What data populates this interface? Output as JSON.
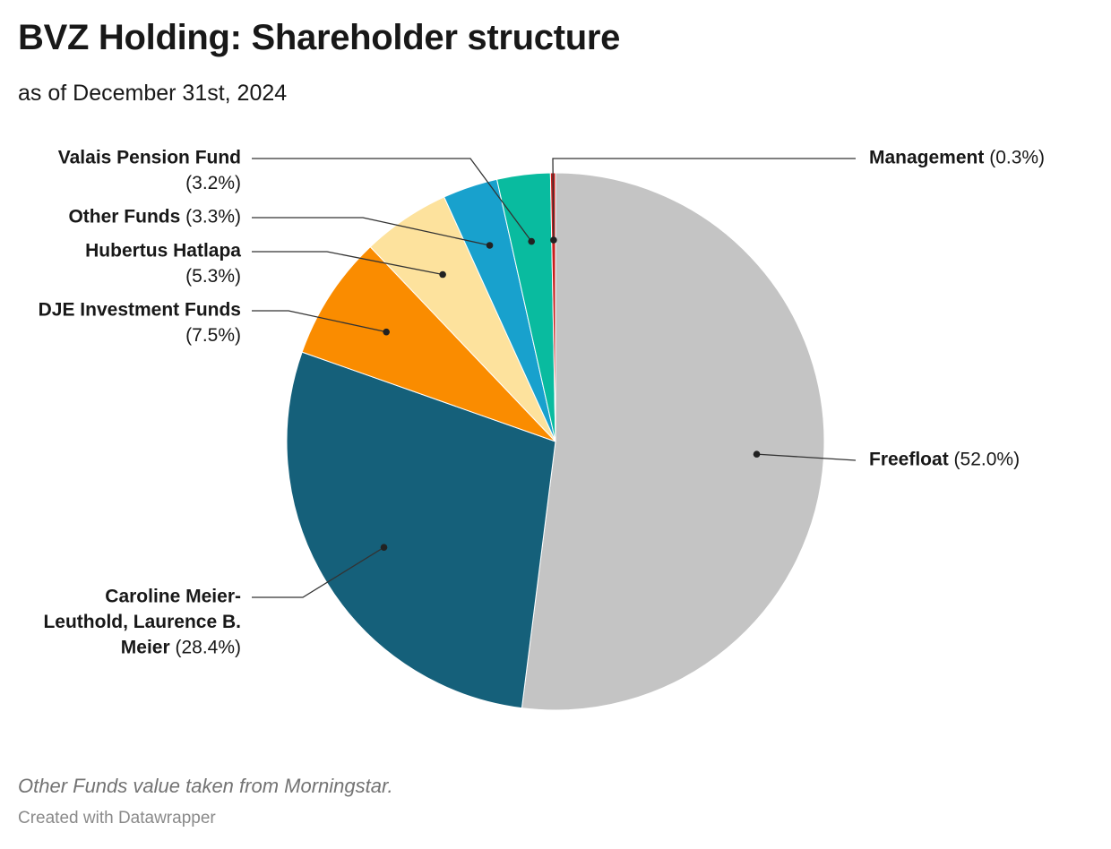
{
  "header": {
    "title": "BVZ Holding: Shareholder structure",
    "subtitle": "as of December 31st, 2024"
  },
  "footer": {
    "note": "Other Funds value taken from Morningstar.",
    "credit": "Created with Datawrapper"
  },
  "chart_data": {
    "type": "pie",
    "title": "BVZ Holding: Shareholder structure",
    "subtitle": "as of December 31st, 2024",
    "slices": [
      {
        "label": "Freefloat",
        "value": 52.0,
        "value_label": "(52.0%)",
        "color": "#c4c4c4"
      },
      {
        "label": "Caroline Meier-Leuthold, Laurence B. Meier",
        "value": 28.4,
        "value_label": "(28.4%)",
        "color": "#15607a"
      },
      {
        "label": "DJE Investment Funds",
        "value": 7.5,
        "value_label": "(7.5%)",
        "color": "#fa8c00"
      },
      {
        "label": "Hubertus Hatlapa",
        "value": 5.3,
        "value_label": "(5.3%)",
        "color": "#fde29d"
      },
      {
        "label": "Other Funds",
        "value": 3.3,
        "value_label": "(3.3%)",
        "color": "#18a1cd"
      },
      {
        "label": "Valais Pension Fund",
        "value": 3.2,
        "value_label": "(3.2%)",
        "color": "#09bb9f"
      },
      {
        "label": "Management",
        "value": 0.3,
        "value_label": "(0.3%)",
        "color": "#c71e1d"
      }
    ]
  }
}
